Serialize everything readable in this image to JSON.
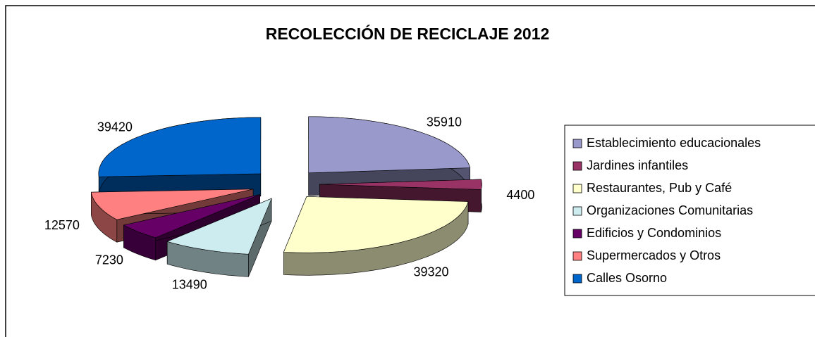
{
  "chart_data": {
    "type": "pie",
    "title": "RECOLECCIÓN DE RECICLAJE 2012",
    "categories": [
      "Establecimiento educacionales",
      "Jardines infantiles",
      "Restaurantes, Pub y Café",
      "Organizaciones Comunitarias",
      "Edificios y Condominios",
      "Supermercados y Otros",
      "Calles Osorno"
    ],
    "values": [
      35910,
      4400,
      39320,
      13490,
      7230,
      12570,
      39420
    ],
    "colors": [
      "#9999cc",
      "#993366",
      "#ffffcc",
      "#ccecf0",
      "#660066",
      "#ff8080",
      "#0066cc"
    ],
    "legend": "right"
  }
}
